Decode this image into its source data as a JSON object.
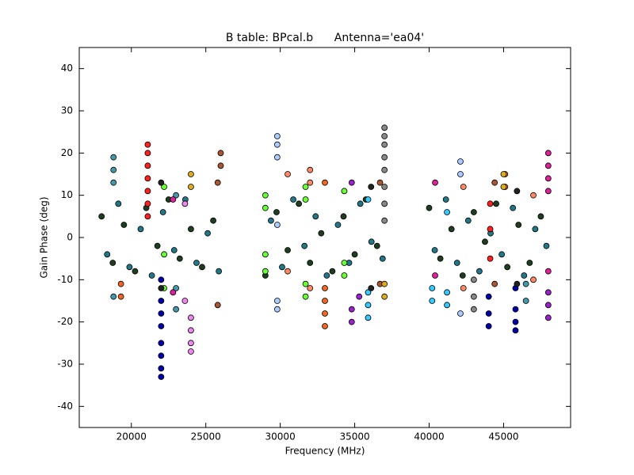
{
  "chart_data": {
    "type": "scatter",
    "title": "B table: BPcal.b      Antenna='ea04'",
    "x_label": "Frequency (MHz)",
    "y_label": "Gain Phase (deg)",
    "xlim": [
      16500,
      49500
    ],
    "ylim": [
      -45,
      45
    ],
    "xticks": [
      20000,
      25000,
      30000,
      35000,
      40000,
      45000
    ],
    "yticks": [
      -40,
      -30,
      -20,
      -10,
      0,
      10,
      20,
      30,
      40
    ],
    "grid": false,
    "series": [
      {
        "color": "#1f3d1f",
        "x": [
          18000,
          18750,
          19500,
          20250,
          21000,
          21750,
          22500,
          23250,
          24000,
          24750,
          25500,
          29000,
          29750,
          30500,
          31250,
          32000,
          32750,
          33500,
          34250,
          35000,
          35750,
          36500,
          40000,
          40750,
          41500,
          42250,
          43000,
          43750,
          44500,
          45250,
          46000,
          46750,
          47500
        ],
        "y": [
          5,
          -6,
          3,
          -8,
          7,
          -2,
          9,
          -5,
          2,
          -7,
          4,
          -9,
          6,
          -3,
          8,
          -6,
          1,
          -8,
          5,
          -4,
          9,
          -2,
          7,
          -5,
          2,
          -9,
          6,
          -1,
          8,
          -7,
          3,
          -6,
          5
        ]
      },
      {
        "color": "#227788",
        "x": [
          18375,
          19125,
          19875,
          20625,
          21375,
          22125,
          22875,
          23625,
          24375,
          25125,
          25875,
          29375,
          30125,
          30875,
          31625,
          32375,
          33125,
          33875,
          34625,
          35375,
          36125,
          36875,
          40375,
          41125,
          41875,
          42625,
          43375,
          44125,
          44875,
          45625,
          46375,
          47125,
          47875
        ],
        "y": [
          -4,
          8,
          -7,
          2,
          -9,
          6,
          -3,
          9,
          -6,
          1,
          -8,
          4,
          -7,
          9,
          -2,
          5,
          -9,
          3,
          -6,
          8,
          -1,
          -5,
          -3,
          9,
          -6,
          4,
          -8,
          1,
          -4,
          7,
          -9,
          2,
          -2
        ]
      },
      {
        "color": "#0000aa",
        "x": [
          22000,
          22000,
          22000,
          22000,
          22000,
          22000,
          22000,
          22000,
          45800,
          45800,
          45800,
          45800,
          44000,
          44000,
          44000
        ],
        "y": [
          -33,
          -31,
          -28,
          -25,
          -21,
          -18,
          -15,
          -10,
          -22,
          -20,
          -17,
          -12,
          -21,
          -18,
          -14
        ]
      },
      {
        "color": "#ff2020",
        "x": [
          21100,
          21100,
          21100,
          21100,
          21100,
          21100,
          21100,
          44100,
          44100,
          44100
        ],
        "y": [
          22,
          20,
          17,
          14,
          11,
          8,
          5,
          8,
          2,
          -5
        ]
      },
      {
        "color": "#888888",
        "x": [
          37000,
          37000,
          37000,
          37000,
          37000,
          37000,
          37000,
          37000,
          43000,
          43000,
          43000
        ],
        "y": [
          26,
          24,
          22,
          19,
          16,
          12,
          8,
          4,
          -10,
          -14,
          -17
        ]
      },
      {
        "color": "#ee88ee",
        "x": [
          24000,
          24000,
          24000,
          24000,
          23600,
          23600
        ],
        "y": [
          -27,
          -25,
          -22,
          -19,
          8,
          -15
        ]
      },
      {
        "color": "#aaccff",
        "x": [
          29800,
          29800,
          29800,
          29800,
          29800,
          29800,
          42100,
          42100,
          42100
        ],
        "y": [
          24,
          22,
          19,
          -15,
          -17,
          3,
          18,
          15,
          -18
        ]
      },
      {
        "color": "#66ff33",
        "x": [
          29000,
          29000,
          29000,
          29000,
          31700,
          31700,
          31700,
          31700,
          34300,
          34300,
          34300,
          22200,
          22200,
          22200
        ],
        "y": [
          10,
          7,
          -4,
          -8,
          12,
          9,
          -11,
          -14,
          11,
          -6,
          -9,
          12,
          -4,
          -12
        ]
      },
      {
        "color": "#33ccff",
        "x": [
          35900,
          35900,
          35900,
          35900,
          41200,
          41200,
          41200,
          40200,
          40200
        ],
        "y": [
          -19,
          -16,
          -13,
          9,
          6,
          -13,
          -16,
          -12,
          -15
        ]
      },
      {
        "color": "#ff8866",
        "x": [
          32000,
          32000,
          32000,
          30500,
          30500,
          42300,
          42300,
          47000,
          47000
        ],
        "y": [
          16,
          13,
          -12,
          15,
          -8,
          12,
          -12,
          10,
          -10
        ]
      },
      {
        "color": "#ee6622",
        "x": [
          33000,
          33000,
          33000,
          33000,
          33000,
          19300,
          19300,
          45100,
          45100
        ],
        "y": [
          -21,
          -18,
          -15,
          -12,
          13,
          -14,
          -11,
          15,
          12
        ]
      },
      {
        "color": "#4499aa",
        "x": [
          18800,
          18800,
          18800,
          18800,
          23000,
          23000,
          23000,
          46500,
          46500
        ],
        "y": [
          19,
          16,
          13,
          -14,
          -12,
          -17,
          10,
          -15,
          -11
        ]
      },
      {
        "color": "#e0209b",
        "x": [
          48000,
          48000,
          48000,
          48000,
          48000,
          22800,
          22800,
          40400,
          40400
        ],
        "y": [
          20,
          17,
          14,
          11,
          -8,
          -13,
          9,
          13,
          -9
        ]
      },
      {
        "color": "#9922cc",
        "x": [
          48000,
          48000,
          48000,
          34800,
          34800,
          34800,
          35300
        ],
        "y": [
          -19,
          -16,
          -13,
          -20,
          -17,
          13,
          -14
        ]
      },
      {
        "color": "#aa5533",
        "x": [
          26000,
          26000,
          25800,
          25800,
          36700,
          36700,
          44400,
          44400
        ],
        "y": [
          20,
          17,
          13,
          -16,
          13,
          -11,
          13,
          -11
        ]
      },
      {
        "color": "#ddaa22",
        "x": [
          24000,
          24000,
          37000,
          37000,
          45000,
          45000
        ],
        "y": [
          15,
          12,
          -14,
          -11,
          15,
          12
        ]
      },
      {
        "color": "#222222",
        "x": [
          22000,
          22000,
          36100,
          36100,
          45900,
          45900
        ],
        "y": [
          13,
          -12,
          12,
          -12,
          11,
          -11
        ]
      }
    ]
  }
}
